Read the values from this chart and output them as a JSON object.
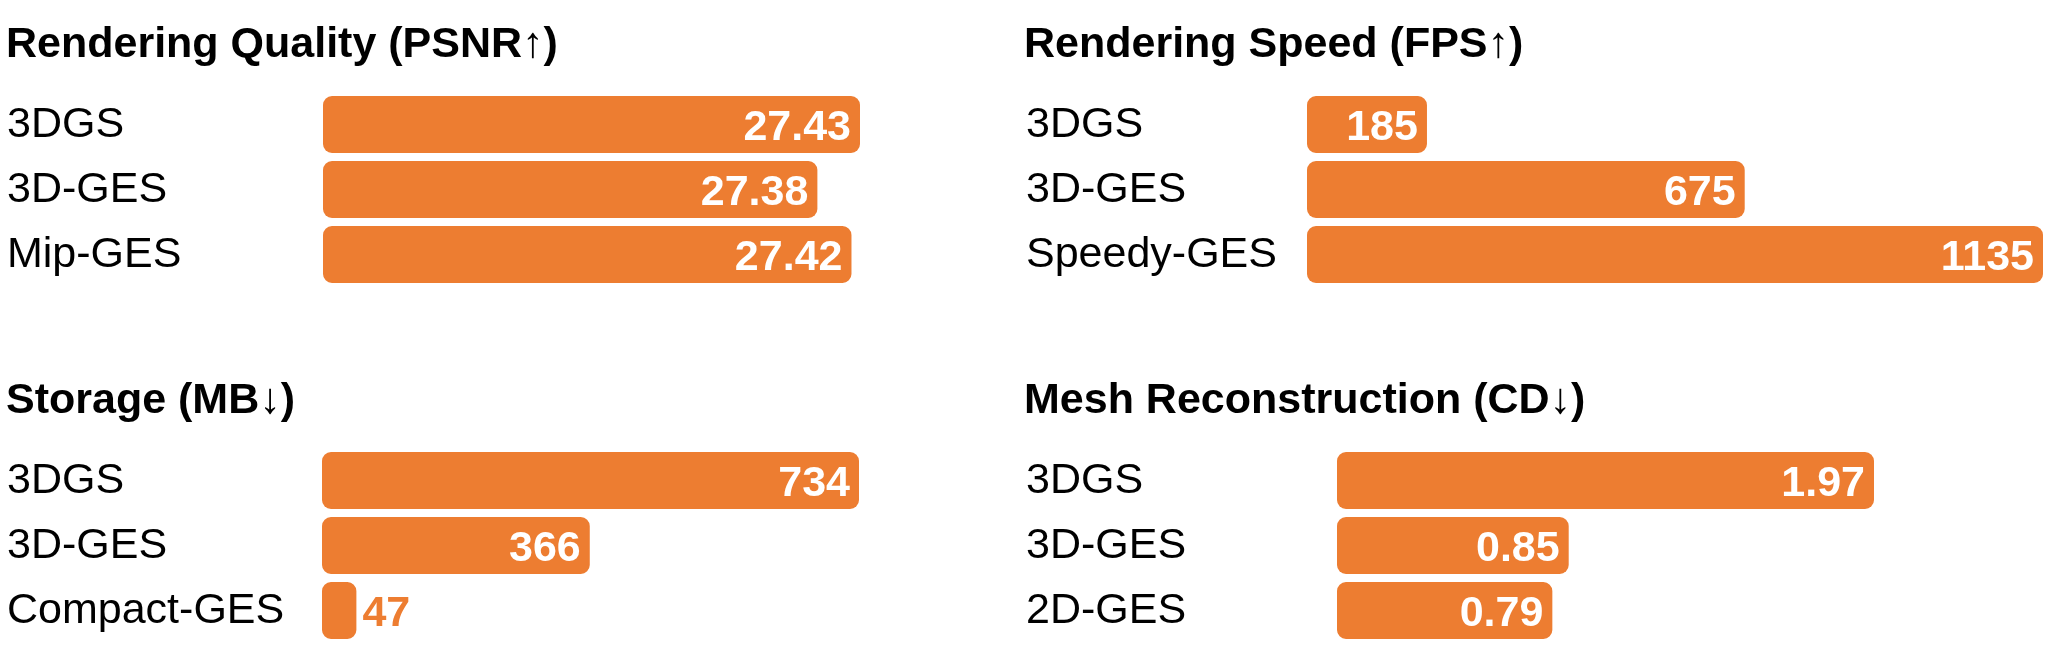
{
  "chart_data": [
    {
      "type": "bar",
      "orientation": "horizontal",
      "title": "Rendering Quality (PSNR↑)",
      "categories": [
        "3DGS",
        "3D-GES",
        "Mip-GES"
      ],
      "values": [
        27.43,
        27.38,
        27.42
      ],
      "color": "#ed7d31",
      "xlim": [
        26.8,
        27.43
      ],
      "data_labels": true,
      "tick_labels": "y"
    },
    {
      "type": "bar",
      "orientation": "horizontal",
      "title": "Rendering Speed (FPS↑)",
      "categories": [
        "3DGS",
        "3D-GES",
        "Speedy-GES"
      ],
      "values": [
        185,
        675,
        1135
      ],
      "color": "#ed7d31",
      "xlim": [
        0,
        1135
      ],
      "data_labels": true,
      "tick_labels": "y"
    },
    {
      "type": "bar",
      "orientation": "horizontal",
      "title": "Storage (MB↓)",
      "categories": [
        "3DGS",
        "3D-GES",
        "Compact-GES"
      ],
      "values": [
        734,
        366,
        47
      ],
      "color": "#ed7d31",
      "xlim": [
        0,
        734
      ],
      "data_labels": true,
      "tick_labels": "y"
    },
    {
      "type": "bar",
      "orientation": "horizontal",
      "title": "Mesh Reconstruction (CD↓)",
      "categories": [
        "3DGS",
        "3D-GES",
        "2D-GES"
      ],
      "values": [
        1.97,
        0.85,
        0.79
      ],
      "color": "#ed7d31",
      "xlim": [
        0,
        1.97
      ],
      "data_labels": true,
      "tick_labels": "y"
    }
  ]
}
